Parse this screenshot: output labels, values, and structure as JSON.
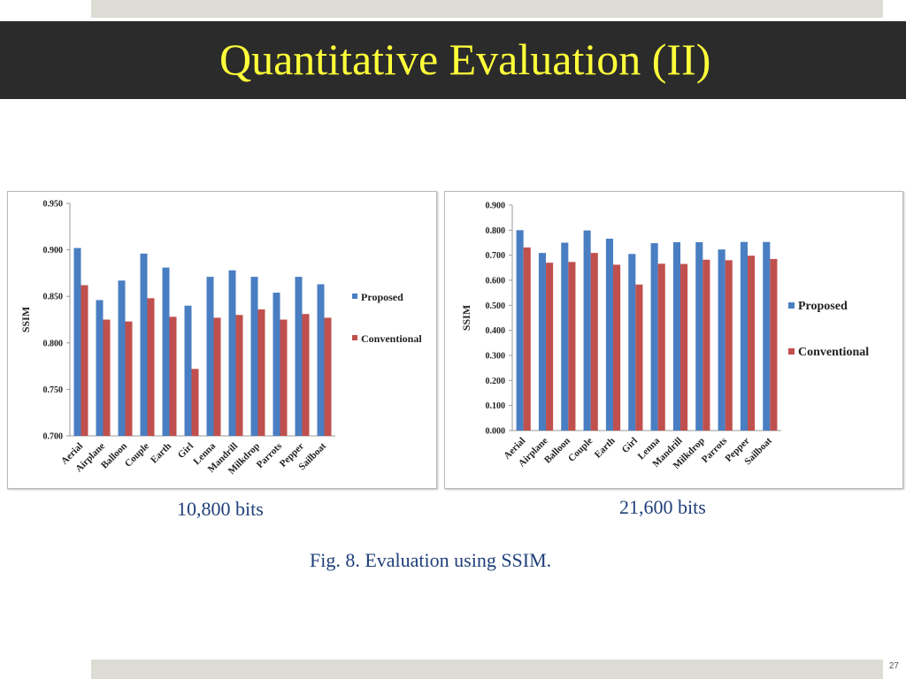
{
  "slide": {
    "title": "Quantitative Evaluation (II)",
    "figure_caption": "Fig. 8. Evaluation using SSIM.",
    "page_number": "27"
  },
  "colors": {
    "title_bg": "#2b2b2b",
    "title_text": "#ffff3a",
    "caption_text": "#1f3f7a",
    "proposed": "#4a7ec2",
    "conventional": "#c0504d"
  },
  "chart_data": [
    {
      "type": "bar",
      "caption": "10,800 bits",
      "ylabel": "SSIM",
      "xlabel": "",
      "ylim": [
        0.7,
        0.95
      ],
      "yticks": [
        "0.700",
        "0.750",
        "0.800",
        "0.850",
        "0.900",
        "0.950"
      ],
      "ytick_values": [
        0.7,
        0.75,
        0.8,
        0.85,
        0.9,
        0.95
      ],
      "categories": [
        "Aerial",
        "Airplane",
        "Balloon",
        "Couple",
        "Earth",
        "Girl",
        "Lenna",
        "Mandrill",
        "Milkdrop",
        "Parrots",
        "Pepper",
        "Sailboat"
      ],
      "series": [
        {
          "name": "Proposed",
          "values": [
            0.902,
            0.846,
            0.867,
            0.896,
            0.881,
            0.84,
            0.871,
            0.878,
            0.871,
            0.854,
            0.871,
            0.863
          ]
        },
        {
          "name": "Conventional",
          "values": [
            0.862,
            0.825,
            0.823,
            0.848,
            0.828,
            0.772,
            0.827,
            0.83,
            0.836,
            0.825,
            0.831,
            0.827
          ]
        }
      ],
      "legend_position": "right"
    },
    {
      "type": "bar",
      "caption": "21,600 bits",
      "ylabel": "SSIM",
      "xlabel": "",
      "ylim": [
        0,
        0.9
      ],
      "yticks": [
        "0.000",
        "0.100",
        "0.200",
        "0.300",
        "0.400",
        "0.500",
        "0.600",
        "0.700",
        "0.800",
        "0.900"
      ],
      "ytick_values": [
        0,
        0.1,
        0.2,
        0.3,
        0.4,
        0.5,
        0.6,
        0.7,
        0.8,
        0.9
      ],
      "categories": [
        "Aerial",
        "Airplane",
        "Balloon",
        "Couple",
        "Earth",
        "Girl",
        "Lenna",
        "Mandrill",
        "Milkdrop",
        "Parrots",
        "Pepper",
        "Sailboat"
      ],
      "series": [
        {
          "name": "Proposed",
          "values": [
            0.8,
            0.709,
            0.75,
            0.799,
            0.766,
            0.705,
            0.748,
            0.752,
            0.752,
            0.723,
            0.753,
            0.753
          ]
        },
        {
          "name": "Conventional",
          "values": [
            0.731,
            0.67,
            0.673,
            0.709,
            0.662,
            0.583,
            0.666,
            0.665,
            0.682,
            0.68,
            0.698,
            0.685
          ]
        }
      ],
      "legend_position": "right"
    }
  ]
}
